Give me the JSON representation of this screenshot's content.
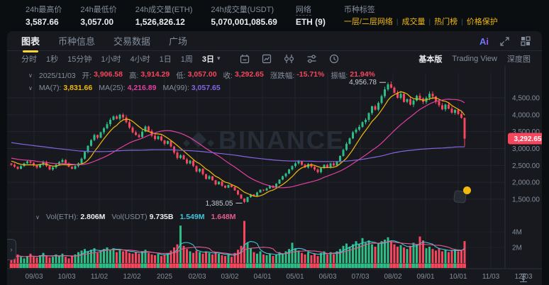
{
  "top_stats": {
    "items": [
      {
        "label": "24h最高价",
        "value": "3,587.66"
      },
      {
        "label": "24h最低价",
        "value": "3,057.00"
      },
      {
        "label": "24h成交量(ETH)",
        "value": "1,526,826.12"
      },
      {
        "label": "24h成交量(USDT)",
        "value": "5,070,001,085.69"
      },
      {
        "label": "网络",
        "value": "ETH (9)"
      }
    ],
    "tags": {
      "label": "币种标签",
      "separator": "|",
      "items": [
        "一层/二层网络",
        "成交量",
        "热门榜",
        "价格保护"
      ]
    }
  },
  "tabs": {
    "items": [
      "图表",
      "币种信息",
      "交易数据",
      "广场"
    ],
    "active": "图表",
    "ai_label": "Ai"
  },
  "toolbar": {
    "intervals": [
      "分时",
      "1秒",
      "15分钟",
      "1小时",
      "4小时",
      "1日",
      "1周"
    ],
    "selected_interval": "3日",
    "views": [
      "基本版",
      "Trading View",
      "深度图"
    ],
    "active_view": "基本版"
  },
  "legend": {
    "collapse_glyph": "∨",
    "date": "2025/11/03",
    "ohlc": [
      {
        "label": "开:",
        "value": "3,906.58"
      },
      {
        "label": "高:",
        "value": "3,914.29"
      },
      {
        "label": "低:",
        "value": "3,057.00"
      },
      {
        "label": "收:",
        "value": "3,292.65"
      },
      {
        "label": "涨跌幅:",
        "value": "-15.71%"
      },
      {
        "label": "振幅:",
        "value": "21.94%"
      }
    ],
    "ma": [
      {
        "label": "MA(7):",
        "value": "3,831.66",
        "color": "#f0b90b"
      },
      {
        "label": "MA(25):",
        "value": "4,216.89",
        "color": "#e0409f"
      },
      {
        "label": "MA(99):",
        "value": "3,057.65",
        "color": "#8465e0"
      }
    ]
  },
  "volume_legend": {
    "vol_eth_label": "Vol(ETH):",
    "vol_eth": "2.806M",
    "vol_usdt_label": "Vol(USDT)",
    "vol_usdt": "9.735B",
    "ma1": "1.549M",
    "ma2": "1.648M"
  },
  "watermark": "BINANCE",
  "chart_data": {
    "type": "candlestick+volume",
    "note": "ETH/USDT 3-day candles, Sep 2024 - Nov 2025",
    "y_ticks": [
      "4,500.00",
      "4,000.00",
      "3,500.00",
      "3,000.00",
      "2,500.00",
      "2,000.00",
      "1,500.00"
    ],
    "y_tick_values": [
      4500,
      4000,
      3500,
      3000,
      2500,
      2000,
      1500
    ],
    "vol_ticks": [
      {
        "label": "4M",
        "value": 4
      },
      {
        "label": "2M",
        "value": 2
      }
    ],
    "current_price": "3,292.65",
    "current_price_value": 3292.65,
    "high_annotation": {
      "text": "4,956.78",
      "value": 4956.78,
      "index": 118
    },
    "low_annotation": {
      "text": "1,385.05",
      "value": 1385.05,
      "index": 73
    },
    "final_candle": {
      "open": 3906.58,
      "high": 3914.29,
      "low": 3057.0,
      "close": 3292.65
    },
    "x_labels": [
      "09/03",
      "10/03",
      "11/02",
      "12/02",
      "2025",
      "02/03",
      "03/02",
      "04/01",
      "05/01",
      "06/03",
      "07/03",
      "08/02",
      "09/01",
      "10/01",
      "11/03",
      "12/03"
    ],
    "closes": [
      2520,
      2460,
      2400,
      2480,
      2560,
      2620,
      2580,
      2500,
      2440,
      2520,
      2600,
      2480,
      2380,
      2440,
      2520,
      2600,
      2660,
      2560,
      2460,
      2400,
      2480,
      2560,
      2700,
      2900,
      3080,
      3250,
      3400,
      3320,
      3480,
      3600,
      3720,
      3850,
      3950,
      3880,
      4000,
      3920,
      3780,
      3620,
      3480,
      3400,
      3340,
      3500,
      3650,
      3520,
      3380,
      3280,
      3360,
      3240,
      3140,
      3220,
      3060,
      2880,
      2720,
      2800,
      2680,
      2560,
      2640,
      2480,
      2320,
      2400,
      2240,
      2100,
      2180,
      2060,
      1940,
      2020,
      1900,
      1840,
      1920,
      1860,
      1760,
      1640,
      1520,
      1420,
      1560,
      1640,
      1600,
      1700,
      1780,
      1760,
      1820,
      1900,
      1840,
      1960,
      2080,
      2180,
      2260,
      2380,
      2480,
      2560,
      2620,
      2520,
      2440,
      2540,
      2460,
      2380,
      2300,
      2420,
      2520,
      2440,
      2560,
      2500,
      2620,
      2780,
      2960,
      3140,
      3300,
      3480,
      3560,
      3640,
      3780,
      3850,
      4050,
      4250,
      4150,
      4350,
      4550,
      4750,
      4900,
      4800,
      4650,
      4500,
      4620,
      4380,
      4460,
      4300,
      4420,
      4560,
      4480,
      4380,
      4500,
      4620,
      4540,
      4400,
      4280,
      4160,
      4300,
      4180,
      4060,
      4140,
      4020,
      3906.58,
      3292.65
    ],
    "volumes": [
      0.9,
      0.7,
      1.1,
      0.8,
      0.6,
      0.9,
      1.2,
      0.8,
      0.7,
      1.0,
      1.3,
      0.9,
      0.7,
      0.8,
      1.1,
      0.9,
      1.2,
      0.8,
      0.6,
      0.9,
      1.1,
      1.4,
      1.6,
      1.8,
      1.5,
      1.7,
      1.9,
      1.3,
      1.6,
      1.8,
      2.0,
      1.7,
      1.9,
      1.4,
      1.8,
      1.5,
      1.6,
      1.3,
      1.2,
      1.4,
      1.2,
      1.5,
      1.7,
      1.3,
      1.1,
      1.0,
      1.2,
      0.9,
      1.1,
      1.3,
      1.6,
      2.0,
      2.4,
      4.8,
      2.2,
      1.8,
      1.5,
      1.3,
      1.6,
      1.4,
      1.2,
      1.5,
      1.3,
      1.1,
      1.4,
      1.2,
      1.0,
      0.9,
      1.1,
      0.8,
      1.3,
      1.7,
      2.2,
      5.4,
      2.6,
      1.9,
      1.4,
      1.2,
      1.5,
      1.1,
      1.0,
      1.2,
      0.9,
      1.1,
      1.4,
      1.2,
      1.5,
      1.8,
      2.6,
      1.9,
      1.6,
      1.3,
      1.1,
      1.4,
      1.0,
      1.2,
      0.9,
      1.3,
      1.5,
      1.1,
      1.4,
      1.1,
      1.5,
      1.8,
      2.2,
      2.5,
      2.1,
      2.4,
      2.8,
      2.4,
      3.2,
      2.6,
      2.9,
      2.4,
      2.1,
      2.5,
      2.8,
      3.0,
      3.3,
      2.7,
      2.4,
      2.1,
      2.3,
      2.0,
      1.8,
      2.2,
      2.6,
      2.4,
      3.4,
      2.9,
      1.9,
      2.1,
      1.8,
      1.6,
      1.9,
      1.5,
      1.7,
      1.4,
      1.6,
      1.8,
      1.5,
      1.7,
      2.81
    ],
    "prehistory": {
      "start": 3780,
      "end": 2580,
      "count": 98
    },
    "colors": {
      "up": "#2ebd85",
      "down": "#f6465d",
      "ma7": "#f0b90b",
      "ma25": "#e0409f",
      "ma99": "#8465e0",
      "volma1": "#3fc6dc",
      "volma2": "#e45b8e",
      "badge": "#f6465d",
      "axis_text": "#848e9c",
      "grid": "#21262e"
    }
  },
  "misc": {
    "handle_glyph": "›"
  }
}
